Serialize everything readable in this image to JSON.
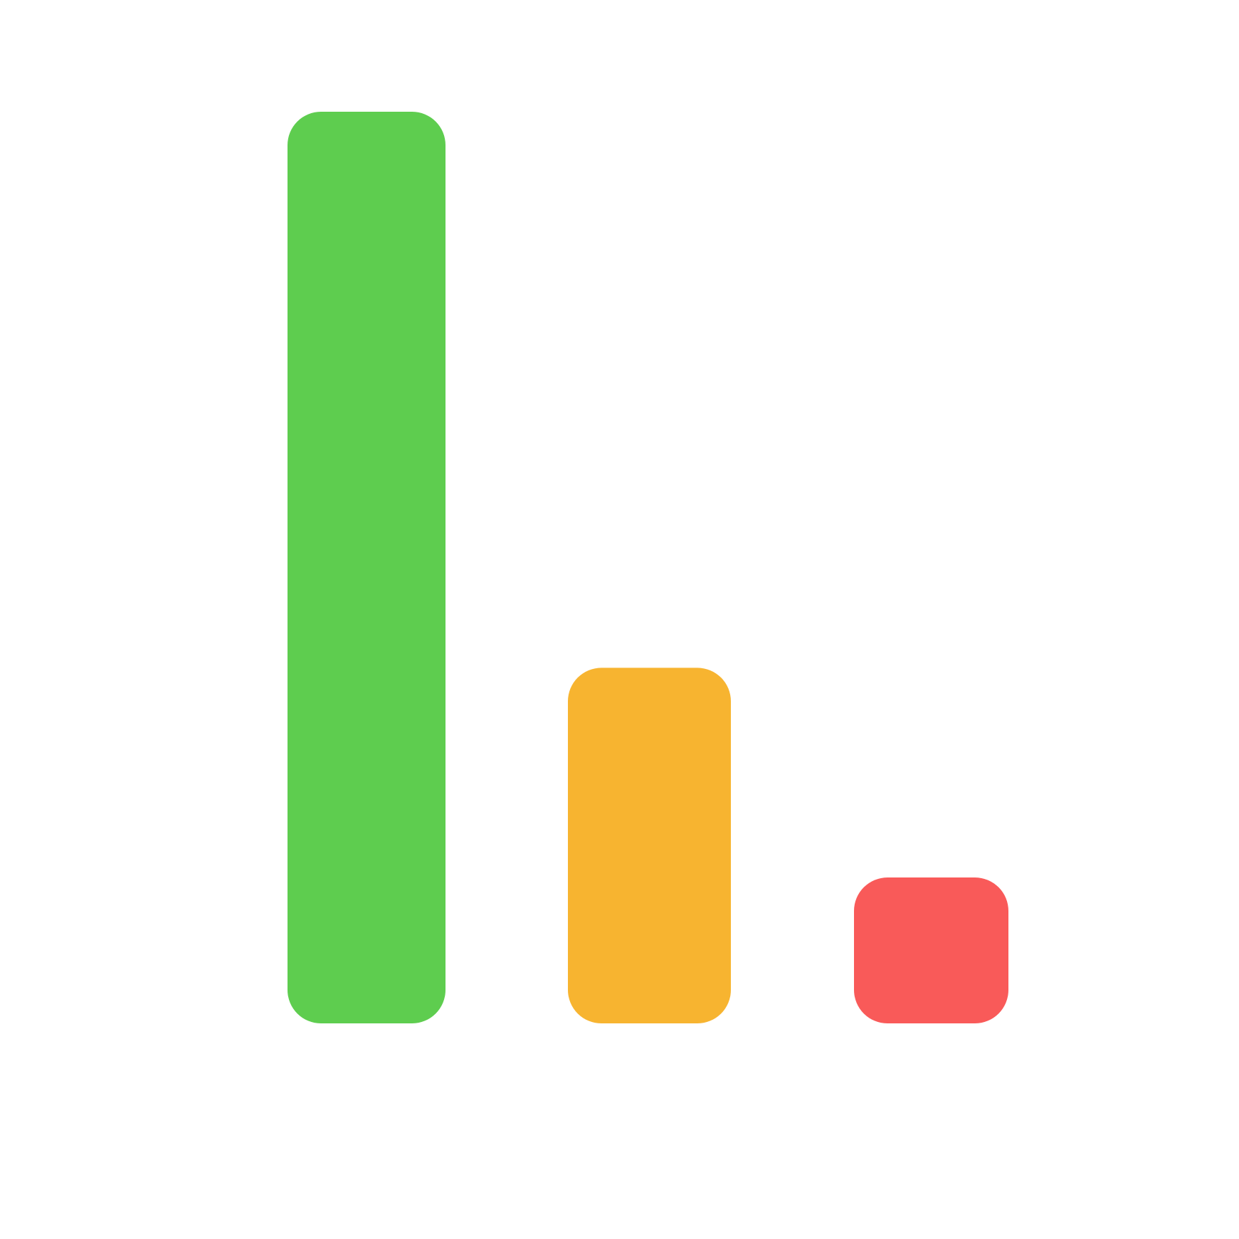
{
  "chart_data": {
    "type": "bar",
    "categories": [
      "",
      "",
      ""
    ],
    "values": [
      100,
      39,
      16
    ],
    "colors": [
      "#5ECD4F",
      "#F7B430",
      "#F95A59"
    ],
    "ylim": [
      0,
      100
    ],
    "grid": false,
    "legend": "none",
    "axes_visible": false
  }
}
